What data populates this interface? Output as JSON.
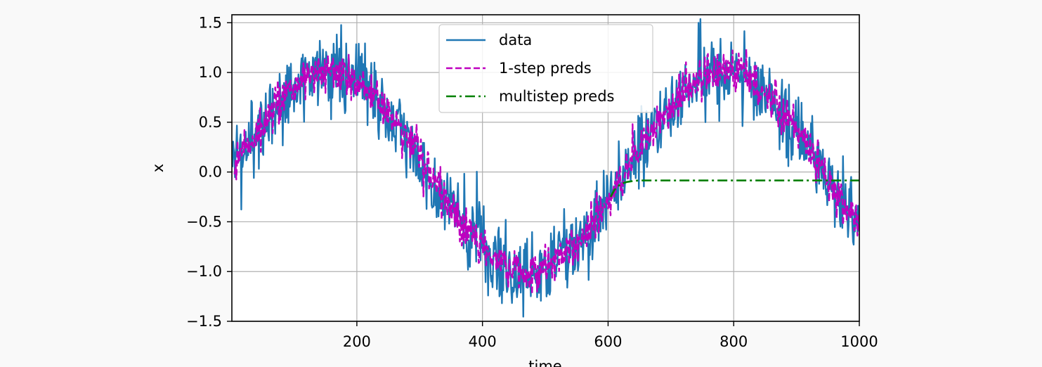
{
  "chart_data": {
    "type": "line",
    "title": "",
    "xlabel": "time",
    "ylabel": "x",
    "xlim": [
      1,
      1000
    ],
    "ylim": [
      -1.5,
      1.58
    ],
    "x_ticks": [
      200,
      400,
      600,
      800,
      1000
    ],
    "x_tick_labels": [
      "200",
      "400",
      "600",
      "800",
      "1000"
    ],
    "y_ticks": [
      -1.5,
      -1.0,
      -0.5,
      0.0,
      0.5,
      1.0,
      1.5
    ],
    "y_tick_labels": [
      "−1.5",
      "−1.0",
      "−0.5",
      "0.0",
      "0.5",
      "1.0",
      "1.5"
    ],
    "grid": true,
    "legend_position": "upper-center",
    "series": [
      {
        "name": "data",
        "color": "#1f77b4",
        "line_style": "solid",
        "x_range": [
          1,
          1000
        ],
        "model": "sin(0.01*t) + gaussian noise (sd 0.2)",
        "noise_sd": 0.2
      },
      {
        "name": "1-step preds",
        "color": "#bf00bf",
        "line_style": "dashed",
        "x_range": [
          5,
          1000
        ],
        "model": "one-step-ahead prediction, approx sin(0.01*t) with small noise (sd 0.1)"
      },
      {
        "name": "multistep preds",
        "color": "#008000",
        "line_style": "dashdot",
        "x_range": [
          604,
          1000
        ],
        "points": [
          [
            604,
            -0.25
          ],
          [
            610,
            -0.18
          ],
          [
            620,
            -0.12
          ],
          [
            630,
            -0.1
          ],
          [
            640,
            -0.09
          ],
          [
            650,
            -0.085
          ],
          [
            700,
            -0.085
          ],
          [
            800,
            -0.085
          ],
          [
            900,
            -0.085
          ],
          [
            1000,
            -0.085
          ]
        ]
      }
    ]
  }
}
